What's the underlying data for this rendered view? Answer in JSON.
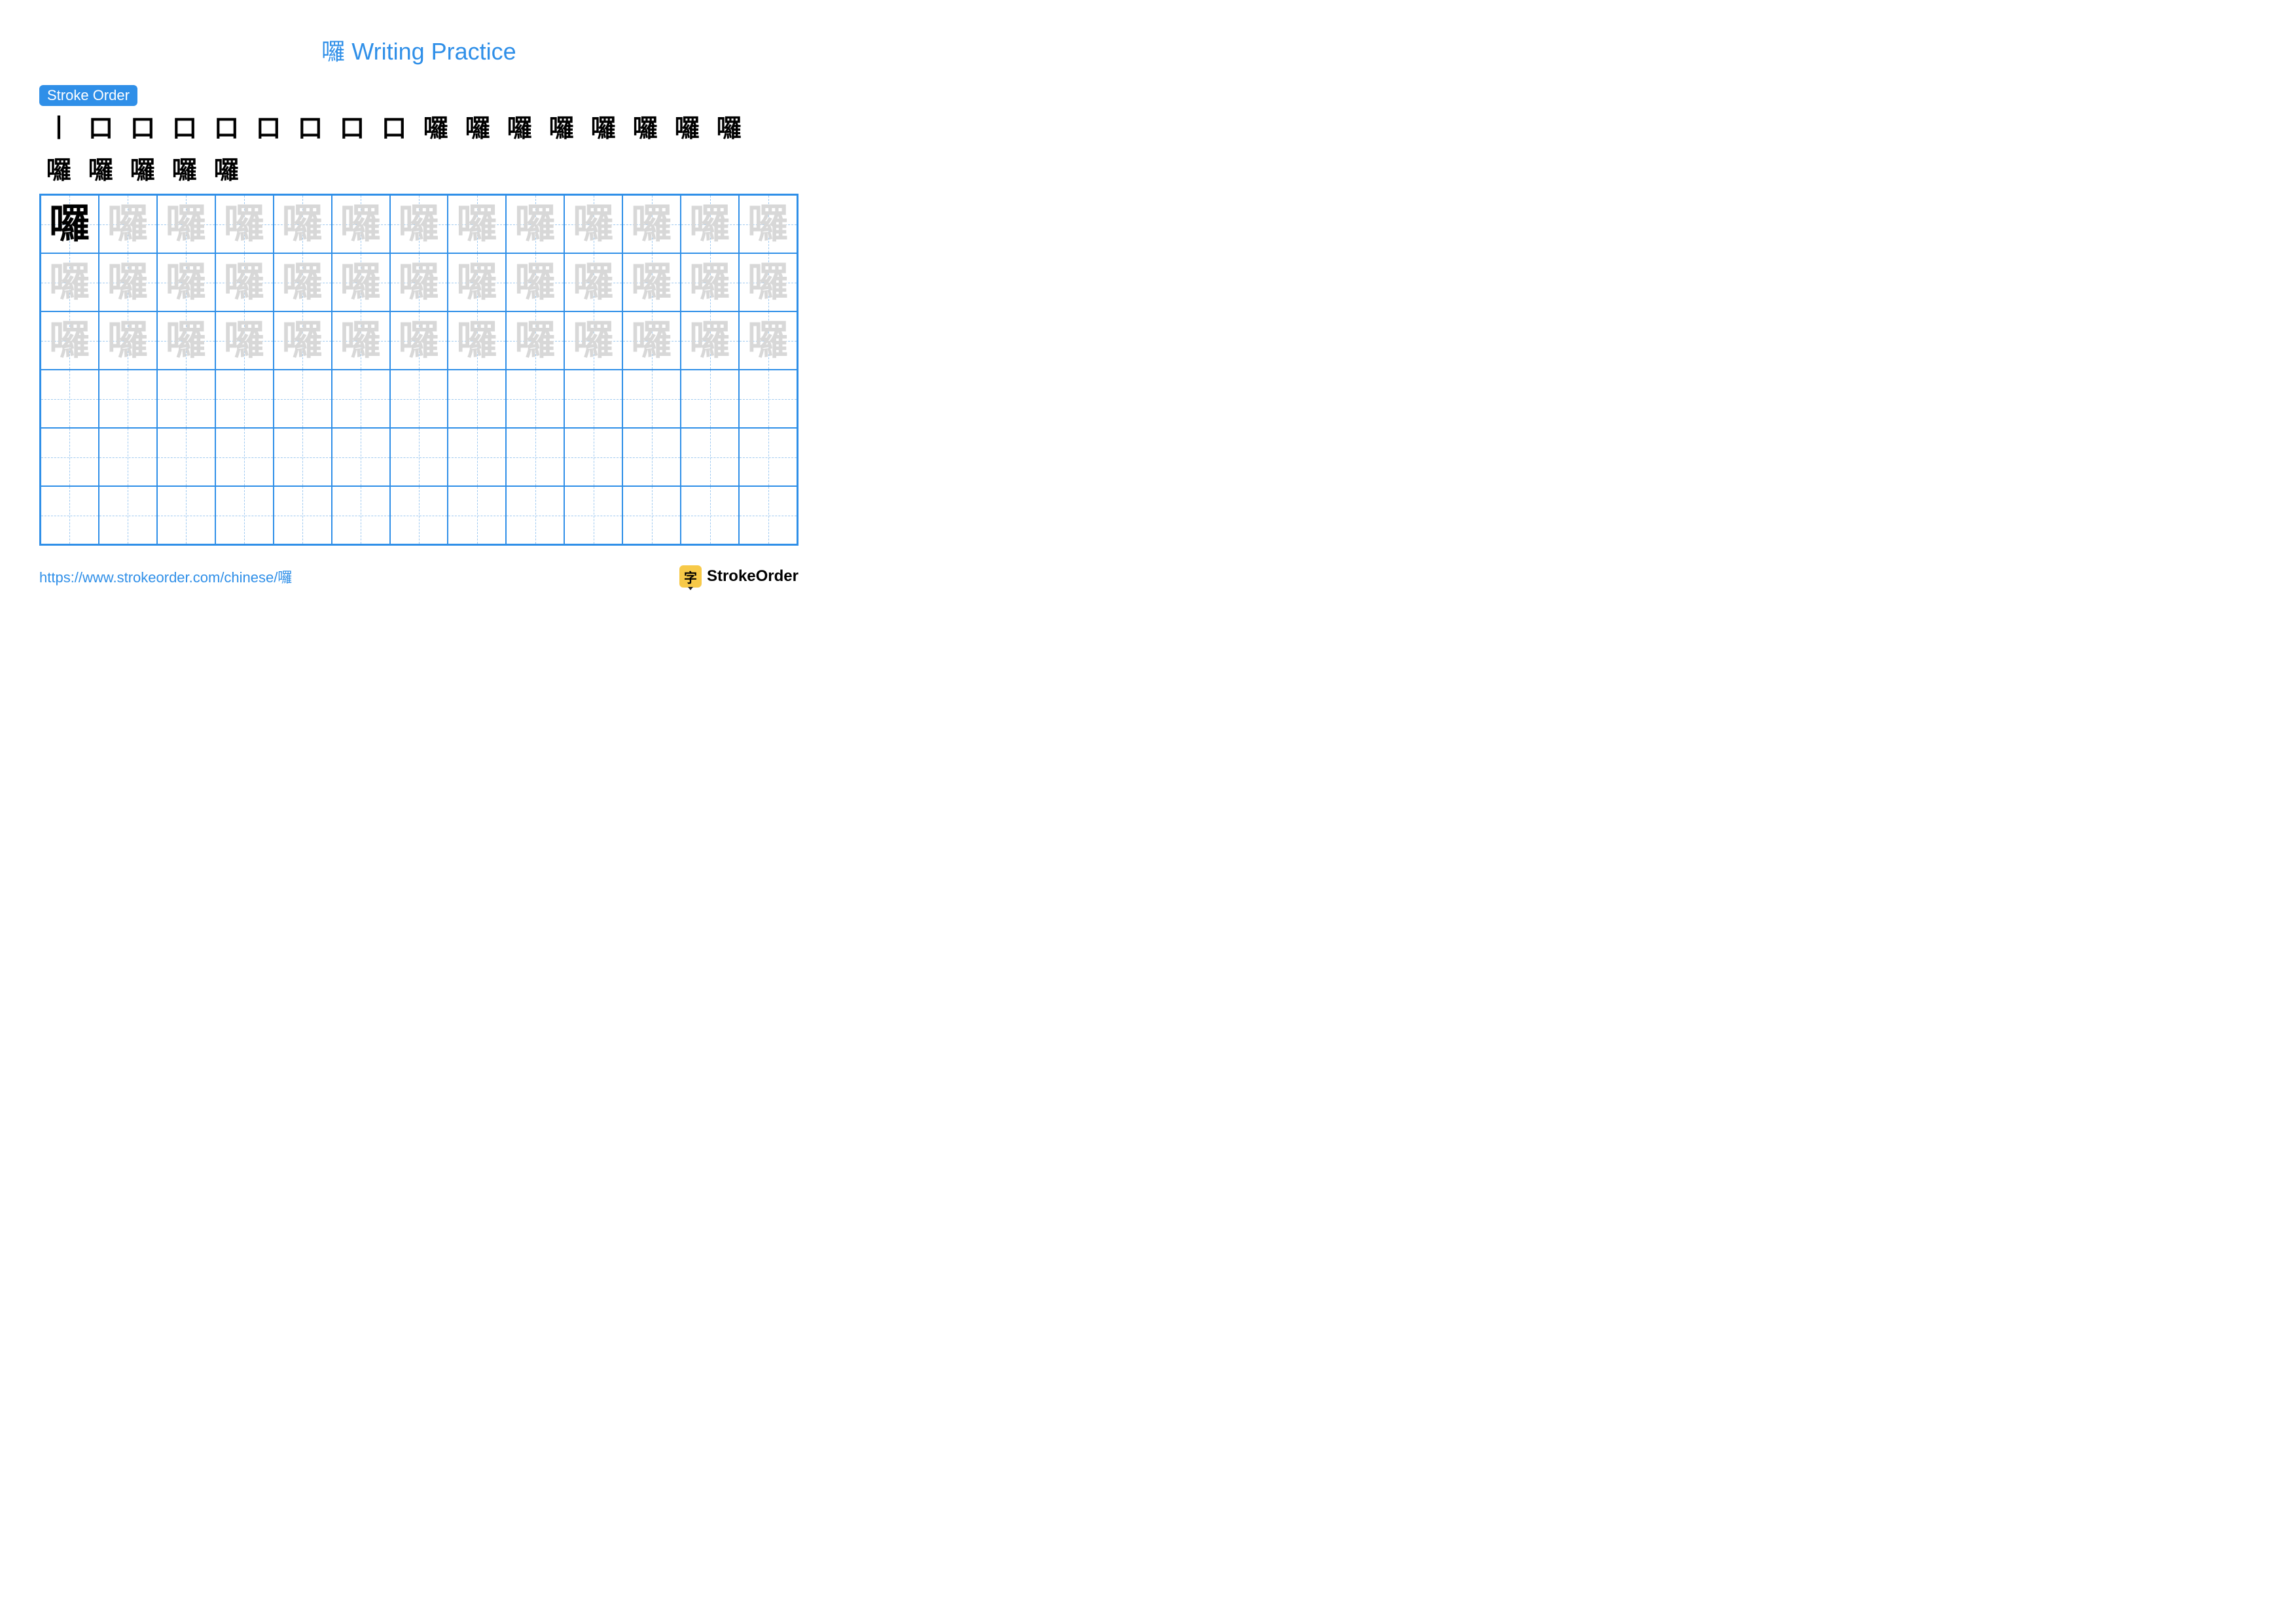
{
  "title": "囉 Writing Practice",
  "colors": {
    "accent": "#2f8fe8",
    "title": "#2f8fe8",
    "grid_border": "#2f8fe8",
    "guide_line": "#9fc9f0",
    "trace_char": "#d8d8d8",
    "solid_char": "#000000",
    "url": "#2f8fe8",
    "brand_bg": "#f7c948",
    "brand_tip": "#222222"
  },
  "stroke_order": {
    "label": "Stroke Order",
    "steps": [
      "丨",
      "口",
      "口",
      "口",
      "口",
      "口",
      "口",
      "口",
      "口",
      "口",
      "口",
      "口",
      "口",
      "口",
      "口",
      "口",
      "囉",
      "囉",
      "囉",
      "囉",
      "囉",
      "囉"
    ]
  },
  "character": "囉",
  "grid": {
    "cols": 13,
    "rows": 6,
    "cell_size": 89,
    "char_fontsize": 62,
    "solid_cells": [
      [
        0,
        0
      ]
    ],
    "trace_rows": [
      0,
      1,
      2
    ],
    "empty_rows": [
      3,
      4,
      5
    ]
  },
  "footer": {
    "url": "https://www.strokeorder.com/chinese/囉",
    "brand_char": "字",
    "brand_text": "StrokeOrder"
  }
}
